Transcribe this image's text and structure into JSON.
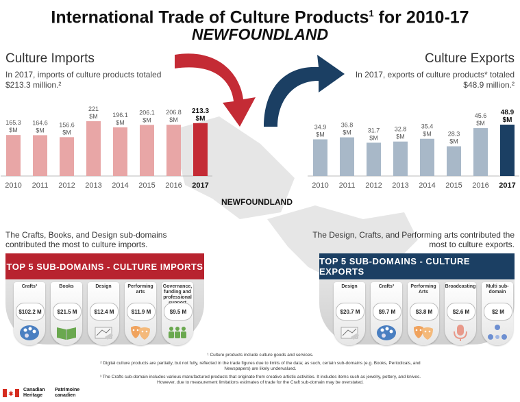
{
  "title": "International Trade of Culture Products",
  "title_sup": "1",
  "title_suffix": " for 2010-17",
  "subtitle": "NEWFOUNDLAND",
  "imports": {
    "heading": "Culture Imports",
    "summary": "In 2017, imports of culture products totaled $213.3 million.²",
    "contribution": "The Crafts, Books, and Design sub-domains contributed the most to culture imports.",
    "banner": "TOP 5 SUB-DOMAINS - CULTURE IMPORTS",
    "cards": [
      {
        "label": "Crafts³",
        "value": "$102.2 M",
        "icon": "palette-icon"
      },
      {
        "label": "Books",
        "value": "$21.5 M",
        "icon": "book-icon"
      },
      {
        "label": "Design",
        "value": "$12.4 M",
        "icon": "drawing-hand-icon"
      },
      {
        "label": "Performing arts",
        "value": "$11.9 M",
        "icon": "theatre-masks-icon"
      },
      {
        "label": "Governance, funding and professional support",
        "value": "$9.5 M",
        "icon": "people-meeting-icon"
      }
    ]
  },
  "exports": {
    "heading": "Culture Exports",
    "summary": "In 2017, exports of culture products* totaled $48.9 million.²",
    "contribution": "The Design, Crafts, and Performing arts contributed the most to culture exports.",
    "banner": "TOP 5 SUB-DOMAINS - CULTURE EXPORTS",
    "cards": [
      {
        "label": "Design",
        "value": "$20.7 M",
        "icon": "drawing-hand-icon"
      },
      {
        "label": "Crafts³",
        "value": "$9.7 M",
        "icon": "palette-icon"
      },
      {
        "label": "Performing Arts",
        "value": "$3.8 M",
        "icon": "theatre-masks-icon"
      },
      {
        "label": "Broadcasting",
        "value": "$2.6 M",
        "icon": "microphone-icon"
      },
      {
        "label": "Multi sub-domain",
        "value": "$2 M",
        "icon": "network-icon"
      }
    ]
  },
  "map_label": "NEWFOUNDLAND",
  "footnotes": [
    "¹ Culture products include culture goods and services.",
    "² Digital culture products are partially, but not fully, reflected in the trade figures due to limits of the data; as such, certain sub-domains (e.g. Books, Periodicals, and Newspapers) are likely undervalued.",
    "³ The Crafts sub-domain includes various manufactured products that originate from creative artistic activities. It includes items such as jewelry, pottery, and knives. However, due to measurement limitations estimates of trade for the Craft sub-domain may be overstated."
  ],
  "canada": {
    "en": "Canadian Heritage",
    "fr": "Patrimoine canadien"
  },
  "colors": {
    "imports": "#e8a6a6",
    "imports_highlight": "#c42b35",
    "exports": "#a8b8c8",
    "exports_highlight": "#1b3f63"
  },
  "chart_data": [
    {
      "type": "bar",
      "categories": [
        "2010",
        "2011",
        "2012",
        "2013",
        "2014",
        "2015",
        "2016",
        "2017"
      ],
      "values": [
        165.3,
        164.6,
        156.6,
        221,
        196.1,
        206.1,
        206.8,
        213.3
      ],
      "unit": "$M",
      "highlight": "2017"
    },
    {
      "type": "bar",
      "categories": [
        "2010",
        "2011",
        "2012",
        "2013",
        "2014",
        "2015",
        "2016",
        "2017"
      ],
      "values": [
        34.9,
        36.8,
        31.7,
        32.8,
        35.4,
        28.3,
        45.6,
        48.9
      ],
      "unit": "$M",
      "highlight": "2017"
    }
  ]
}
